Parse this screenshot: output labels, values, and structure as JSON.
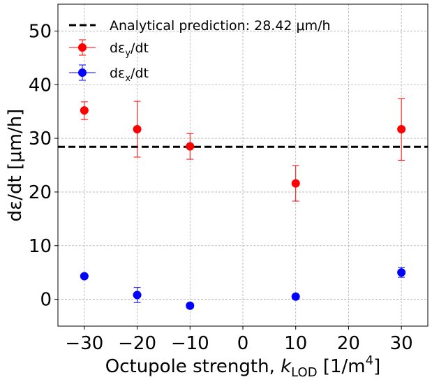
{
  "chart_data": {
    "type": "scatter",
    "title": "",
    "xlabel": {
      "prefix": "Octupole strength, ",
      "var": "k",
      "sub": "LOD",
      "unit_open": " [1/m",
      "sup": "4",
      "unit_close": "]"
    },
    "ylabel": "dε/dt [μm/h]",
    "xlim": [
      -35,
      35
    ],
    "ylim": [
      -5,
      55
    ],
    "xticks": [
      -30,
      -20,
      -10,
      0,
      10,
      20,
      30
    ],
    "yticks": [
      0,
      10,
      20,
      30,
      40,
      50
    ],
    "xtick_labels": [
      "−30",
      "−20",
      "−10",
      "0",
      "10",
      "20",
      "30"
    ],
    "ytick_labels": [
      "0",
      "10",
      "20",
      "30",
      "40",
      "50"
    ],
    "grid": true,
    "legend_position": "top-left",
    "hline": {
      "label": "Analytical prediction: 28.42 μm/h",
      "y": 28.42,
      "color": "#000000",
      "style": "dashed"
    },
    "series": [
      {
        "label": {
          "base": "dε",
          "sub": "y",
          "tail": "/dt"
        },
        "color": "#ff0000",
        "x": [
          -30,
          -20,
          -10,
          10,
          30
        ],
        "y": [
          35.2,
          31.7,
          28.5,
          21.6,
          31.7
        ],
        "yerr_low": [
          33.5,
          26.5,
          26.1,
          18.3,
          25.9
        ],
        "yerr_high": [
          36.8,
          36.9,
          30.9,
          24.9,
          37.4
        ]
      },
      {
        "label": {
          "base": "dε",
          "sub": "x",
          "tail": "/dt"
        },
        "color": "#0000ff",
        "x": [
          -30,
          -20,
          -10,
          10,
          30
        ],
        "y": [
          4.3,
          0.8,
          -1.2,
          0.5,
          5.0
        ],
        "yerr_low": [
          4.0,
          -0.6,
          -1.6,
          0.2,
          4.1
        ],
        "yerr_high": [
          4.6,
          2.2,
          -0.8,
          0.8,
          5.9
        ]
      }
    ]
  }
}
